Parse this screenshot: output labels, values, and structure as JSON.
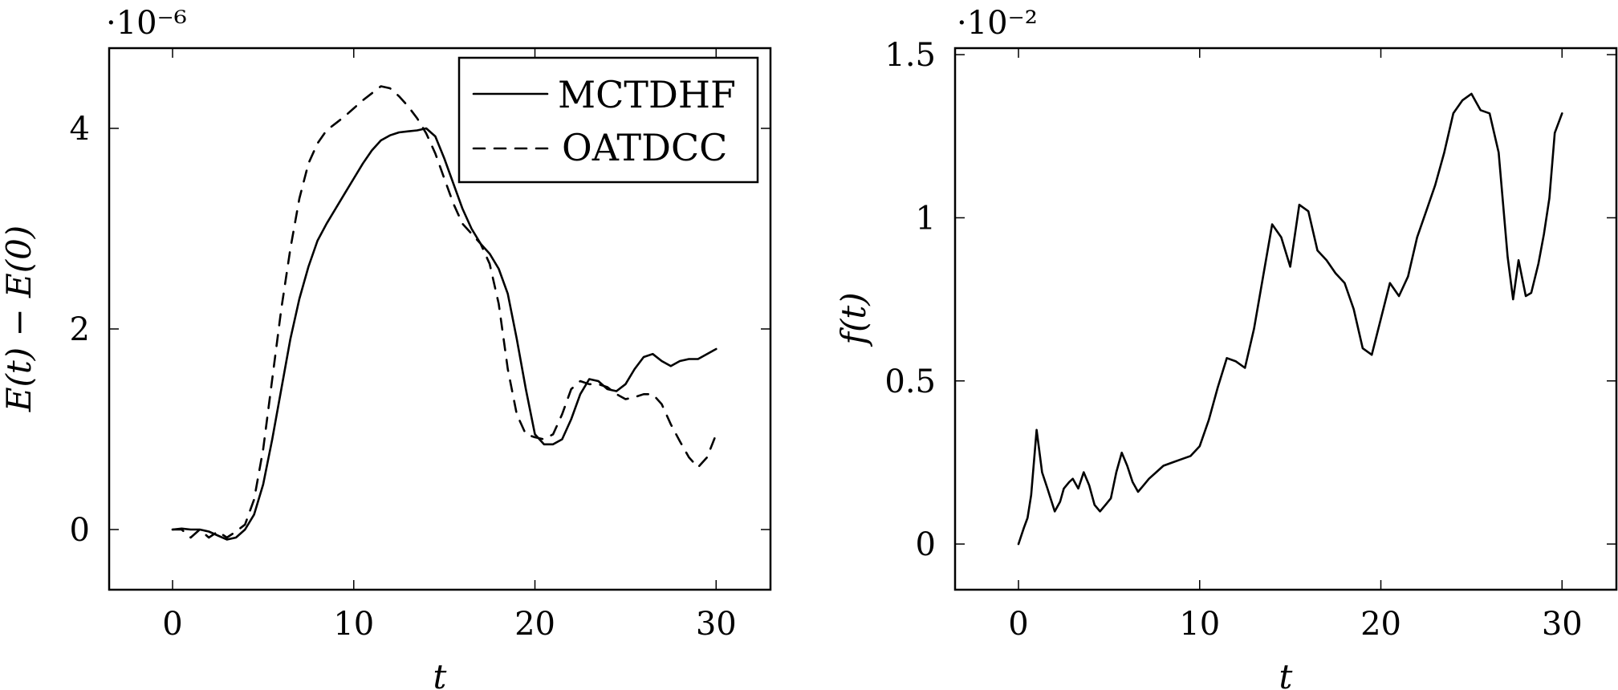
{
  "chart_data": [
    {
      "type": "line",
      "xlabel": "t",
      "ylabel": "E(t) − E(0)",
      "y_scale_label": "·10⁻⁶",
      "xlim": [
        -3.5,
        33
      ],
      "ylim": [
        -0.6,
        4.8
      ],
      "xticks": [
        0,
        10,
        20,
        30
      ],
      "yticks": [
        0,
        2,
        4
      ],
      "grid": false,
      "legend_position": "top-right",
      "series": [
        {
          "name": "MCTDHF",
          "style": "solid",
          "x": [
            0,
            0.5,
            1,
            1.5,
            2,
            2.5,
            3,
            3.5,
            4,
            4.5,
            5,
            5.5,
            6,
            6.5,
            7,
            7.5,
            8,
            8.5,
            9,
            9.5,
            10,
            10.5,
            11,
            11.5,
            12,
            12.5,
            13,
            13.5,
            14,
            14.5,
            15,
            15.5,
            16,
            16.5,
            17,
            17.5,
            18,
            18.5,
            19,
            19.5,
            20,
            20.5,
            21,
            21.5,
            22,
            22.5,
            23,
            23.5,
            24,
            24.5,
            25,
            25.5,
            26,
            26.5,
            27,
            27.5,
            28,
            28.5,
            29,
            29.5,
            30
          ],
          "values": [
            0.0,
            0.01,
            0.0,
            0.0,
            -0.02,
            -0.06,
            -0.1,
            -0.08,
            0.0,
            0.15,
            0.45,
            0.9,
            1.4,
            1.9,
            2.3,
            2.62,
            2.88,
            3.05,
            3.2,
            3.35,
            3.5,
            3.65,
            3.78,
            3.88,
            3.93,
            3.96,
            3.97,
            3.98,
            4.0,
            3.92,
            3.7,
            3.45,
            3.2,
            3.0,
            2.85,
            2.75,
            2.6,
            2.35,
            1.9,
            1.4,
            0.95,
            0.85,
            0.85,
            0.9,
            1.1,
            1.35,
            1.5,
            1.48,
            1.4,
            1.38,
            1.45,
            1.6,
            1.72,
            1.75,
            1.68,
            1.63,
            1.68,
            1.7,
            1.7,
            1.75,
            1.8
          ]
        },
        {
          "name": "OATDCC",
          "style": "dashed",
          "x": [
            0,
            0.5,
            1,
            1.5,
            2,
            2.5,
            3,
            3.5,
            4,
            4.5,
            5,
            5.5,
            6,
            6.5,
            7,
            7.5,
            8,
            8.5,
            9,
            9.5,
            10,
            10.5,
            11,
            11.5,
            12,
            12.5,
            13,
            13.5,
            14,
            14.5,
            15,
            15.5,
            16,
            16.5,
            17,
            17.5,
            18,
            18.5,
            19,
            19.5,
            20,
            20.5,
            21,
            21.5,
            22,
            22.5,
            23,
            23.5,
            24,
            24.5,
            25,
            25.5,
            26,
            26.5,
            27,
            27.5,
            28,
            28.5,
            29,
            29.5,
            30
          ],
          "values": [
            0.0,
            0.0,
            -0.08,
            0.0,
            -0.08,
            -0.02,
            -0.08,
            -0.02,
            0.05,
            0.3,
            0.8,
            1.5,
            2.2,
            2.8,
            3.3,
            3.65,
            3.85,
            3.98,
            4.05,
            4.12,
            4.2,
            4.28,
            4.35,
            4.42,
            4.4,
            4.32,
            4.22,
            4.1,
            3.95,
            3.75,
            3.5,
            3.25,
            3.05,
            2.95,
            2.85,
            2.65,
            2.25,
            1.6,
            1.15,
            0.95,
            0.92,
            0.9,
            0.95,
            1.15,
            1.4,
            1.48,
            1.45,
            1.45,
            1.42,
            1.35,
            1.3,
            1.32,
            1.35,
            1.35,
            1.25,
            1.05,
            0.88,
            0.72,
            0.62,
            0.72,
            0.95
          ]
        }
      ]
    },
    {
      "type": "line",
      "xlabel": "t",
      "ylabel": "f(t)",
      "y_scale_label": "·10⁻²",
      "xlim": [
        -3.5,
        33
      ],
      "ylim": [
        -0.14,
        1.52
      ],
      "xticks": [
        0,
        10,
        20,
        30
      ],
      "ytick_values": [
        0,
        0.5,
        1,
        1.5
      ],
      "ytick_labels": [
        "0",
        "0.5",
        "1",
        "1.5"
      ],
      "grid": false,
      "series": [
        {
          "style": "solid",
          "x": [
            0,
            0.3,
            0.5,
            0.7,
            1.0,
            1.3,
            1.6,
            2.0,
            2.3,
            2.5,
            2.8,
            3.0,
            3.3,
            3.6,
            3.9,
            4.2,
            4.5,
            4.8,
            5.1,
            5.4,
            5.7,
            6.0,
            6.3,
            6.6,
            6.9,
            7.2,
            7.6,
            8.0,
            8.5,
            9.0,
            9.5,
            10.0,
            10.5,
            11.0,
            11.5,
            12.0,
            12.5,
            13.0,
            13.5,
            14.0,
            14.5,
            15.0,
            15.5,
            16.0,
            16.5,
            17.0,
            17.5,
            18.0,
            18.5,
            19.0,
            19.5,
            20.0,
            20.5,
            21.0,
            21.5,
            22.0,
            22.5,
            23.0,
            23.5,
            24.0,
            24.5,
            25.0,
            25.5,
            26.0,
            26.5,
            27.0,
            27.3,
            27.6,
            28.0,
            28.3,
            28.7,
            29.0,
            29.3,
            29.6,
            30.0
          ],
          "values": [
            0.0,
            0.05,
            0.08,
            0.15,
            0.35,
            0.22,
            0.17,
            0.1,
            0.13,
            0.17,
            0.19,
            0.2,
            0.17,
            0.22,
            0.18,
            0.12,
            0.1,
            0.12,
            0.14,
            0.22,
            0.28,
            0.24,
            0.19,
            0.16,
            0.18,
            0.2,
            0.22,
            0.24,
            0.25,
            0.26,
            0.27,
            0.3,
            0.38,
            0.48,
            0.57,
            0.56,
            0.54,
            0.66,
            0.82,
            0.98,
            0.94,
            0.85,
            1.04,
            1.02,
            0.9,
            0.87,
            0.83,
            0.8,
            0.72,
            0.6,
            0.58,
            0.69,
            0.8,
            0.76,
            0.82,
            0.94,
            1.02,
            1.1,
            1.2,
            1.32,
            1.36,
            1.38,
            1.33,
            1.32,
            1.2,
            0.88,
            0.75,
            0.87,
            0.76,
            0.77,
            0.86,
            0.95,
            1.06,
            1.26,
            1.32
          ]
        }
      ]
    }
  ]
}
